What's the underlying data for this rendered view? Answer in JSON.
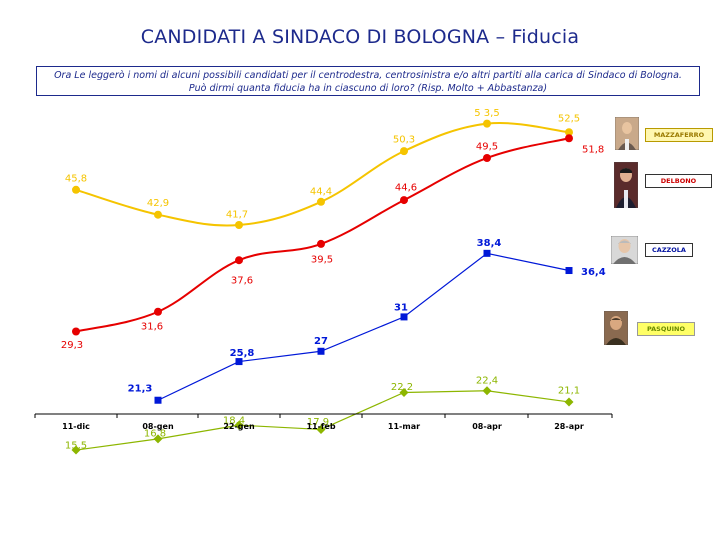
{
  "header": {
    "title": "CANDIDATI A SINDACO DI BOLOGNA – Fiducia",
    "question": "Ora Le leggerò i nomi di alcuni possibili candidati per il centrodestra, centrosinistra e/o altri partiti alla carica di Sindaco di Bologna. Può dirmi quanta fiducia ha in ciascuno di loro? (Risp. Molto + Abbastanza)"
  },
  "candidates": [
    {
      "label": "MAZZAFERRO",
      "color": "#f5c400",
      "label_bg": "#fff7b0",
      "label_color": "#9a7a00"
    },
    {
      "label": "DELBONO",
      "color": "#e60000",
      "label_bg": "#ffffff",
      "label_color": "#cc0000"
    },
    {
      "label": "CAZZOLA",
      "color": "#0018d8",
      "label_bg": "#ffffff",
      "label_color": "#0010a0"
    },
    {
      "label": "PASQUINO",
      "color": "#8db600",
      "label_bg": "#ffff66",
      "label_color": "#6a8a00"
    }
  ],
  "chart_data": {
    "type": "line",
    "categories": [
      "11-dic",
      "08-gen",
      "22-gen",
      "11-feb",
      "11-mar",
      "08-apr",
      "28-apr"
    ],
    "ylim": [
      10,
      58
    ],
    "grid": false,
    "legend": "right",
    "series": [
      {
        "name": "MAZZAFERRO",
        "color": "#f5c400",
        "marker": "circle",
        "values": [
          45.8,
          42.9,
          41.7,
          44.4,
          50.3,
          53.5,
          52.5
        ],
        "labels": [
          "45,8",
          "42,9",
          "41,7",
          "44,4",
          "50,3",
          "5 3,5",
          "52,5"
        ]
      },
      {
        "name": "DELBONO",
        "color": "#e60000",
        "marker": "circle",
        "values": [
          29.3,
          31.6,
          37.6,
          39.5,
          44.6,
          49.5,
          51.8
        ],
        "labels": [
          "29,3",
          "31,6",
          "37,6",
          "39,5",
          "44,6",
          "49,5",
          "51,8"
        ]
      },
      {
        "name": "CAZZOLA",
        "color": "#0018d8",
        "marker": "square",
        "values": [
          null,
          21.3,
          25.8,
          27,
          31,
          38.4,
          36.4
        ],
        "labels": [
          "",
          "21,3",
          "25,8",
          "27",
          "31",
          "38,4",
          "36,4"
        ]
      },
      {
        "name": "PASQUINO",
        "color": "#8db600",
        "marker": "diamond",
        "values": [
          15.5,
          16.8,
          18.4,
          17.9,
          22.2,
          22.4,
          21.1
        ],
        "labels": [
          "15,5",
          "16,8",
          "18,4",
          "17,9",
          "22,2",
          "22,4",
          "21,1"
        ]
      }
    ]
  }
}
